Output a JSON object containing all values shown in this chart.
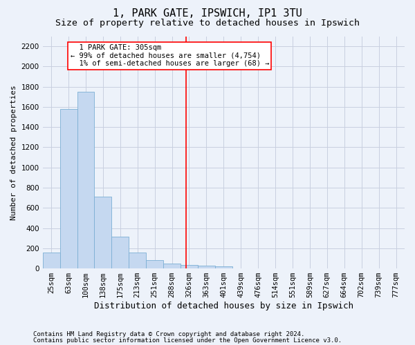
{
  "title1": "1, PARK GATE, IPSWICH, IP1 3TU",
  "title2": "Size of property relative to detached houses in Ipswich",
  "xlabel": "Distribution of detached houses by size in Ipswich",
  "ylabel": "Number of detached properties",
  "categories": [
    "25sqm",
    "63sqm",
    "100sqm",
    "138sqm",
    "175sqm",
    "213sqm",
    "251sqm",
    "288sqm",
    "326sqm",
    "363sqm",
    "401sqm",
    "439sqm",
    "476sqm",
    "514sqm",
    "551sqm",
    "589sqm",
    "627sqm",
    "664sqm",
    "702sqm",
    "739sqm",
    "777sqm"
  ],
  "values": [
    160,
    1580,
    1750,
    710,
    315,
    160,
    85,
    50,
    35,
    25,
    20,
    0,
    0,
    0,
    0,
    0,
    0,
    0,
    0,
    0,
    0
  ],
  "bar_color": "#c5d8f0",
  "bar_edge_color": "#7bafd4",
  "grid_color": "#c8cfe0",
  "bg_color": "#edf2fa",
  "vline_x": 7.83,
  "vline_color": "red",
  "annotation_text": "  1 PARK GATE: 305sqm\n← 99% of detached houses are smaller (4,754)\n  1% of semi-detached houses are larger (68) →",
  "ylim": [
    0,
    2300
  ],
  "yticks": [
    0,
    200,
    400,
    600,
    800,
    1000,
    1200,
    1400,
    1600,
    1800,
    2000,
    2200
  ],
  "footnote1": "Contains HM Land Registry data © Crown copyright and database right 2024.",
  "footnote2": "Contains public sector information licensed under the Open Government Licence v3.0.",
  "title1_fontsize": 11,
  "title2_fontsize": 9.5,
  "xlabel_fontsize": 9,
  "ylabel_fontsize": 8,
  "tick_fontsize": 7.5,
  "annotation_fontsize": 7.5,
  "footnote_fontsize": 6.5
}
